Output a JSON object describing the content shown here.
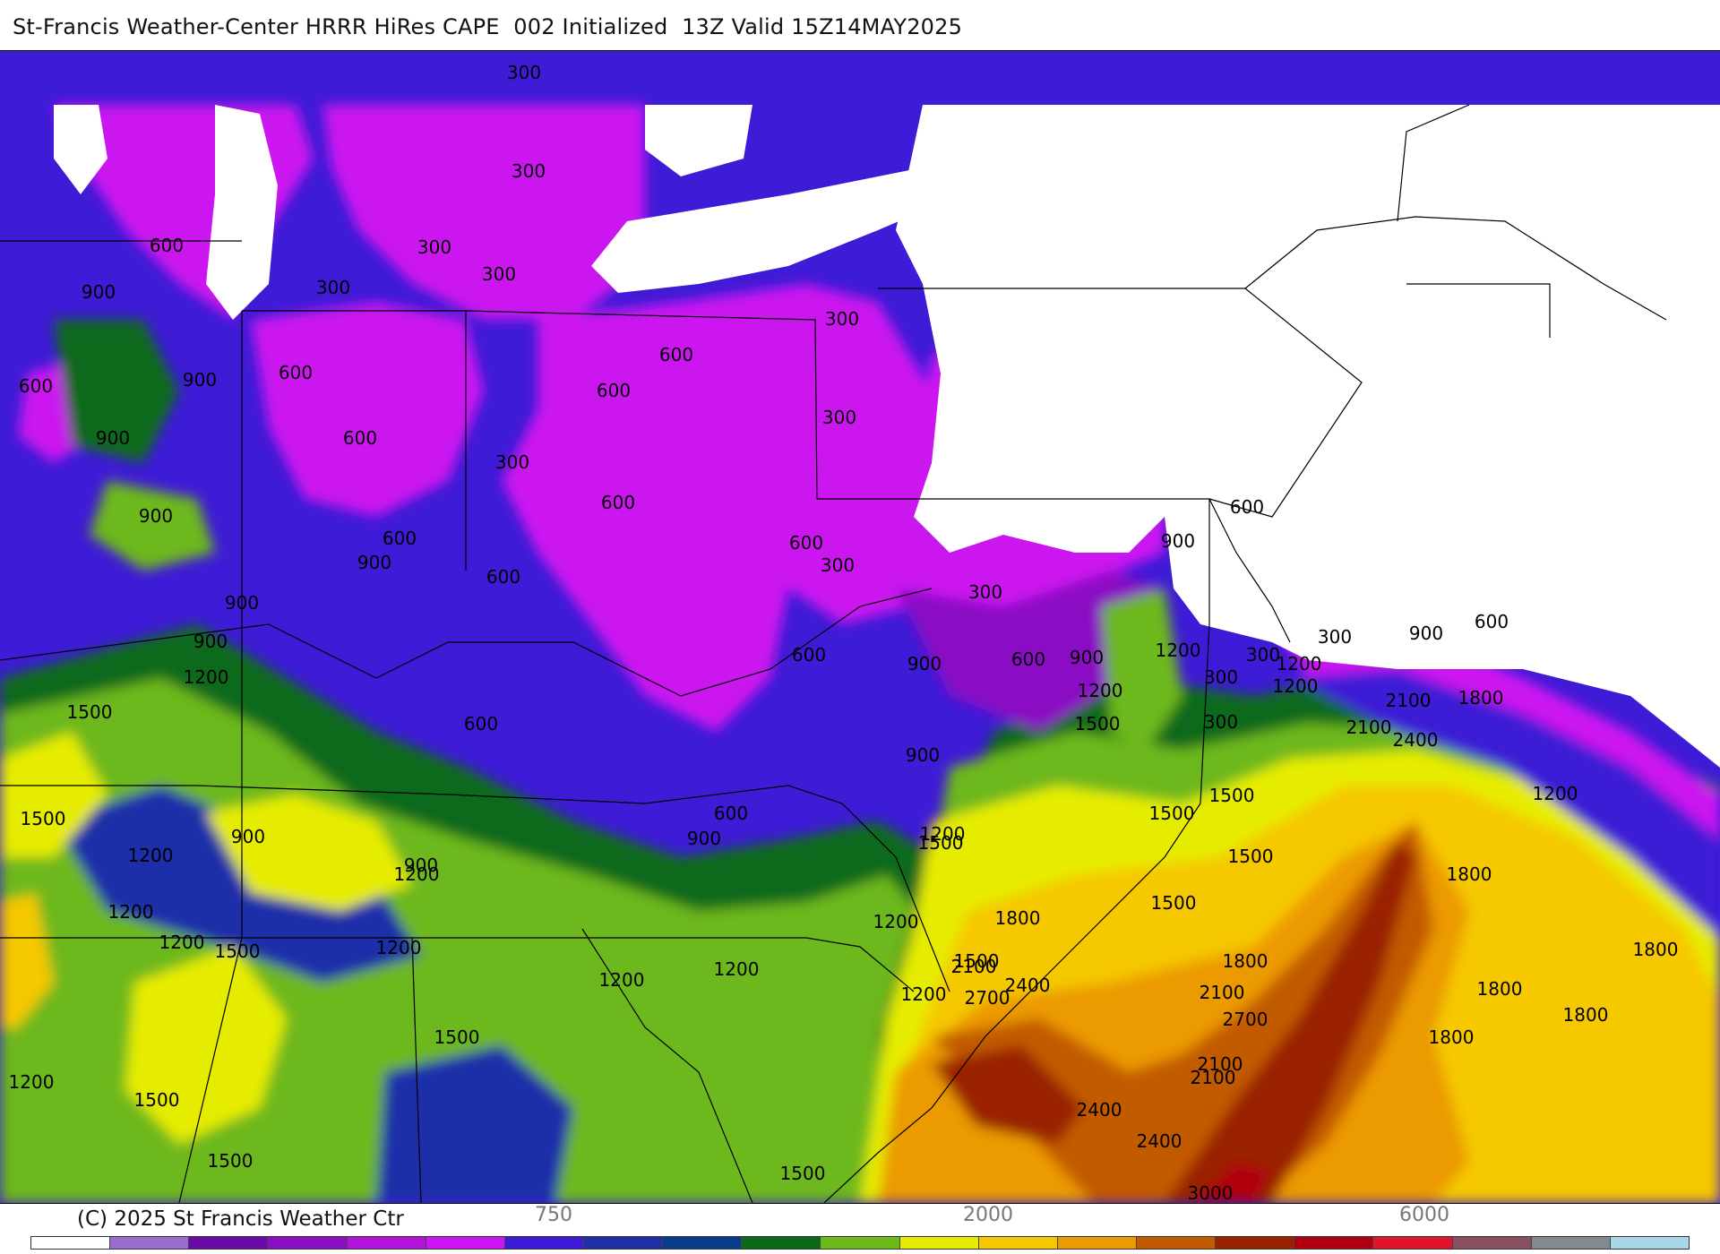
{
  "header": {
    "title": "St-Francis Weather-Center HRRR HiRes CAPE  002 Initialized  13Z Valid 15Z14MAY2025"
  },
  "footer": {
    "copyright": "(C) 2025 St Francis Weather Ctr"
  },
  "colorbar": {
    "tick_labels": [
      "750",
      "2000",
      "6000"
    ],
    "colors": [
      "#ffffff",
      "#9b6ccf",
      "#6a0aa8",
      "#8a0fc4",
      "#b312d8",
      "#cc15f0",
      "#3e1bd6",
      "#1f2fa8",
      "#0a3a8a",
      "#0a6a1a",
      "#6db81a",
      "#e6ec00",
      "#f5c800",
      "#eb9a00",
      "#c25a00",
      "#9a2200",
      "#b00010",
      "#e0142a",
      "#8a5060",
      "#808a90",
      "#a8d8e8"
    ]
  },
  "palette": {
    "ocean_white": "#ffffff",
    "lavender": "#9b6ccf",
    "magenta": "#cc15f0",
    "violet": "#8a0fc4",
    "blue": "#3e1bd6",
    "navy": "#1f2fa8",
    "dark_green": "#0a6a1a",
    "green": "#6db81a",
    "yellow": "#e6ec00",
    "gold": "#f5c800",
    "orange": "#eb9a00",
    "dark_orange": "#c25a00",
    "brown_red": "#9a2200",
    "red": "#b00010"
  },
  "contour_labels": [
    "300",
    "300",
    "300",
    "300",
    "300",
    "300",
    "300",
    "300",
    "300",
    "300",
    "300",
    "300",
    "300",
    "300",
    "600",
    "600",
    "600",
    "600",
    "600",
    "600",
    "600",
    "600",
    "600",
    "600",
    "600",
    "600",
    "600",
    "600",
    "600",
    "600",
    "900",
    "900",
    "900",
    "900",
    "900",
    "900",
    "900",
    "900",
    "900",
    "900",
    "900",
    "900",
    "900",
    "900",
    "900",
    "1200",
    "1200",
    "1200",
    "1200",
    "1200",
    "1200",
    "1200",
    "1200",
    "1200",
    "1200",
    "1200",
    "1200",
    "1200",
    "1200",
    "1200",
    "1200",
    "1200",
    "1500",
    "1500",
    "1500",
    "1500",
    "1500",
    "1500",
    "1500",
    "1500",
    "1500",
    "1500",
    "1500",
    "1500",
    "1500",
    "1500",
    "1800",
    "1800",
    "1800",
    "1800",
    "1800",
    "1800",
    "1800",
    "1800",
    "2100",
    "2100",
    "2100",
    "2100",
    "2100",
    "2100",
    "2400",
    "2400",
    "2400",
    "2400",
    "2700",
    "2700",
    "3000"
  ]
}
